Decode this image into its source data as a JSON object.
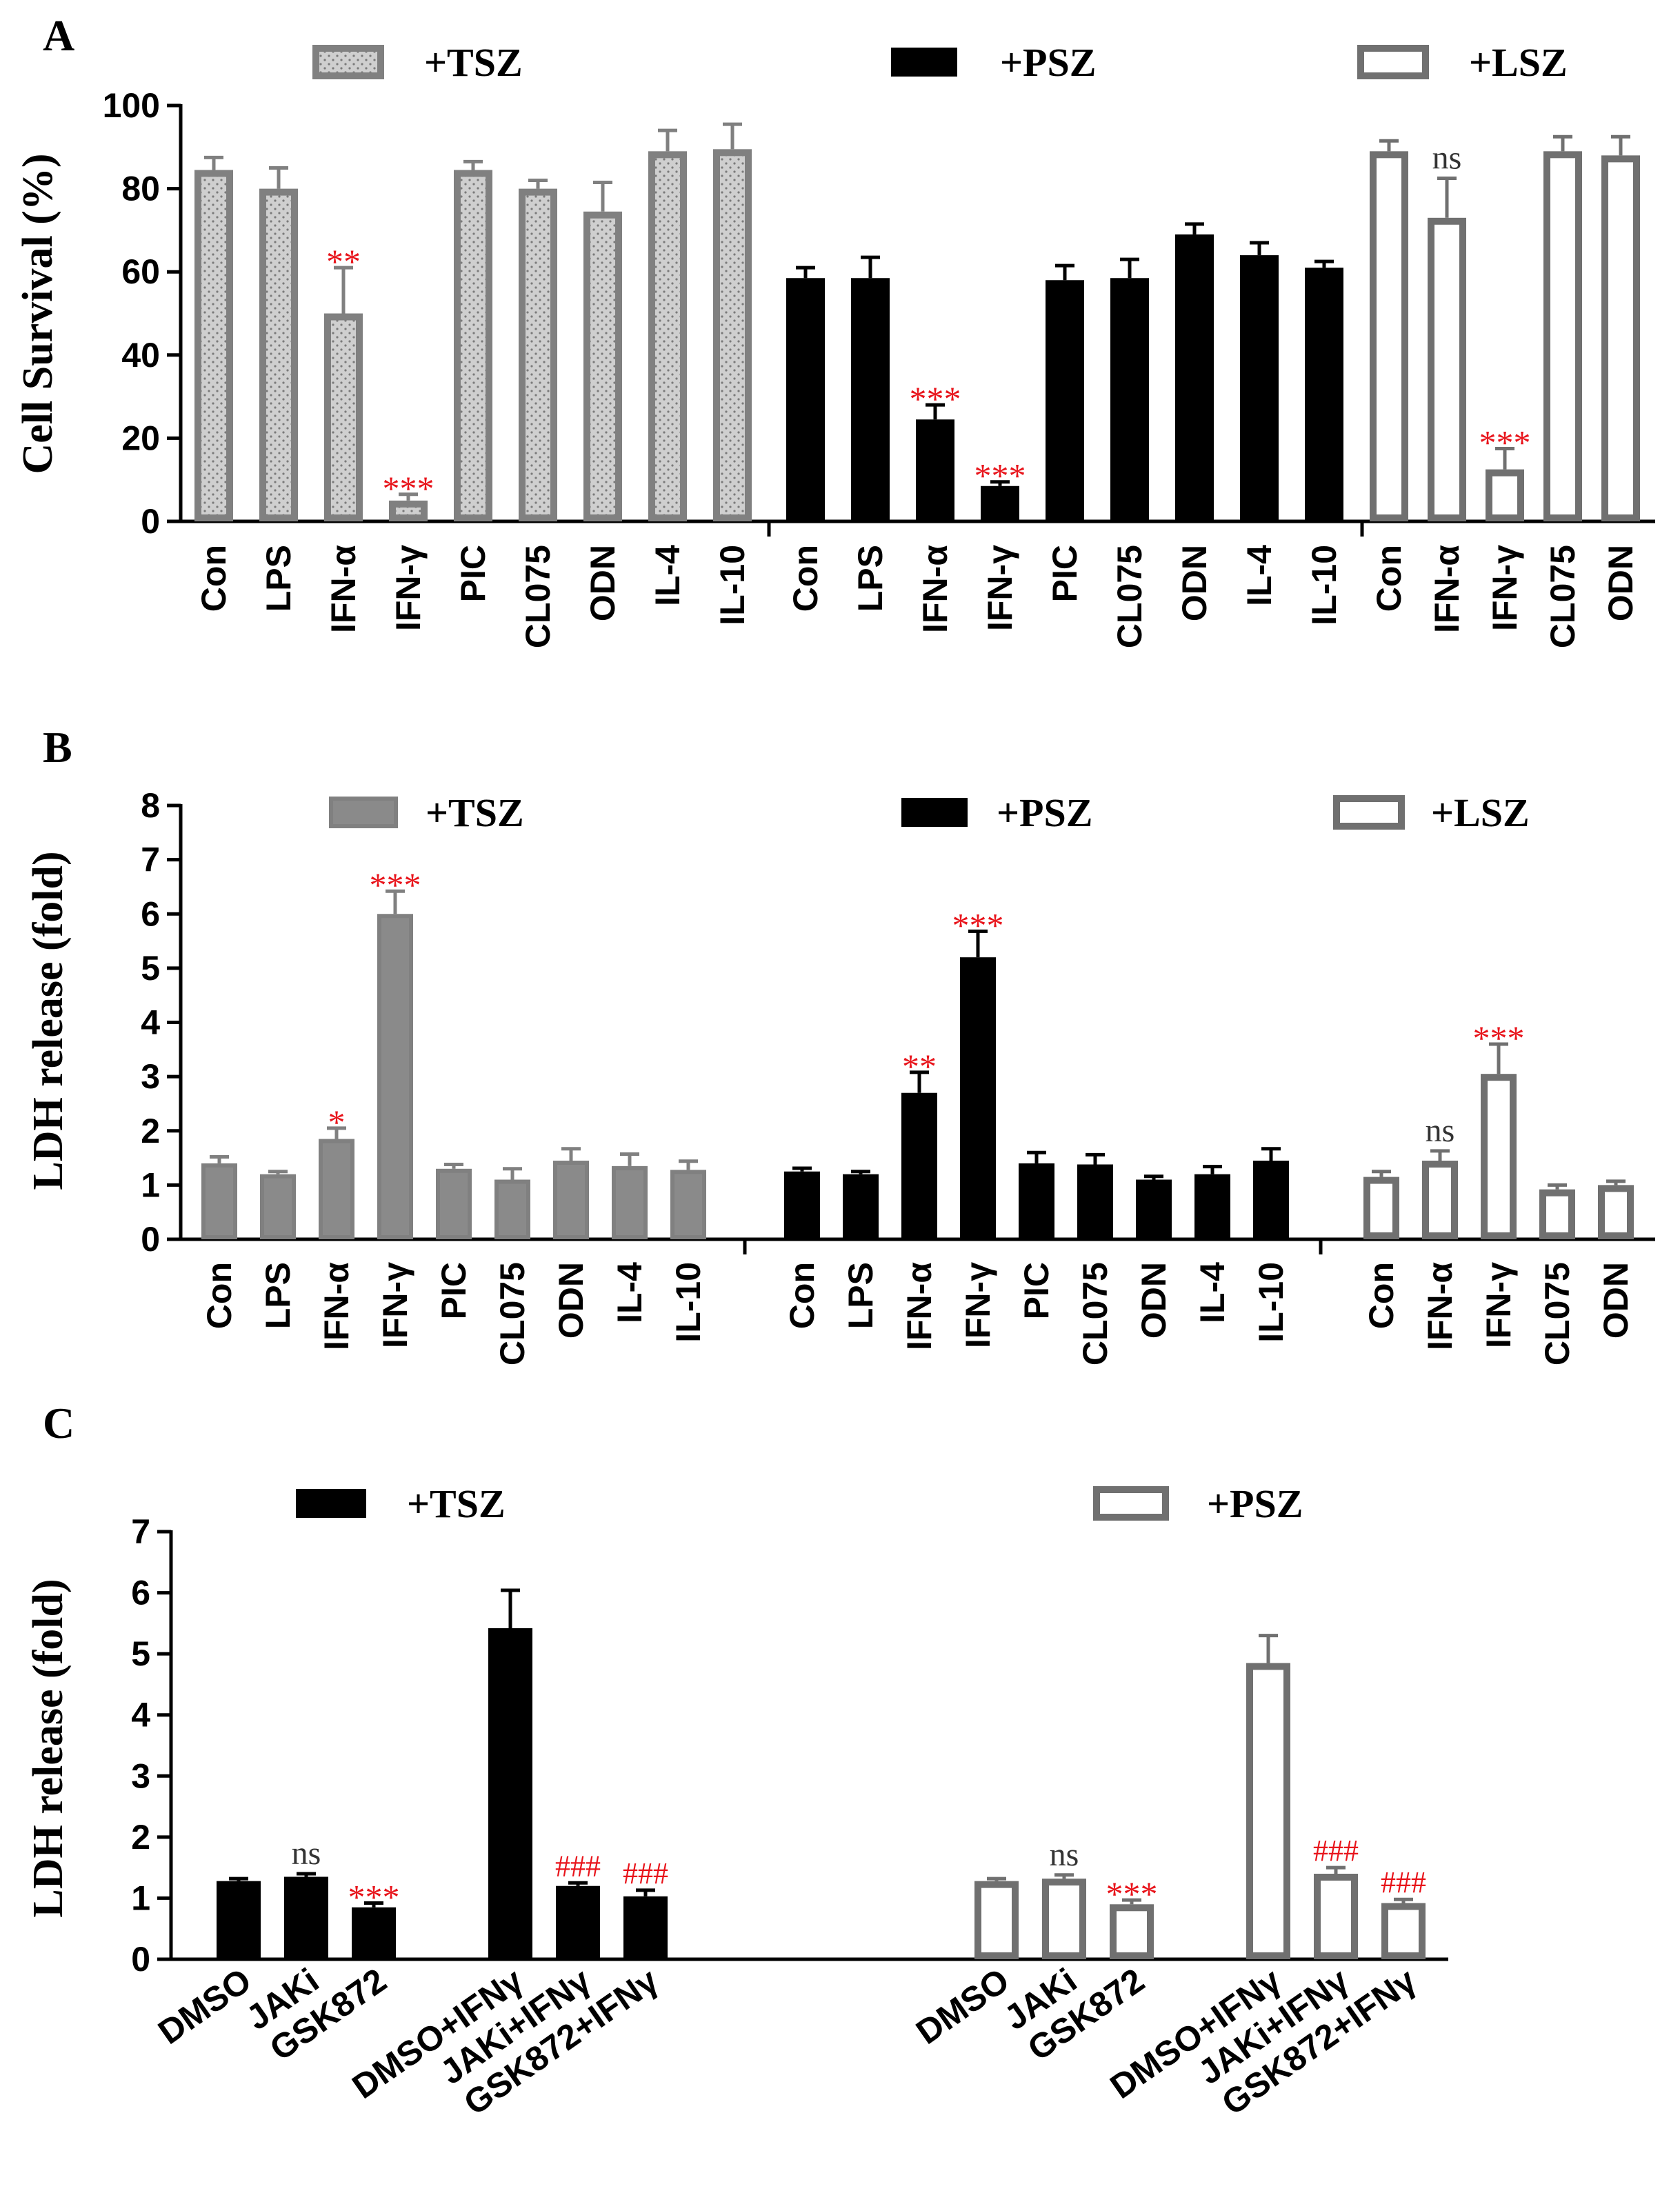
{
  "colors": {
    "TSZ_fill": "#cfcfcf",
    "TSZ_stroke": "#808080",
    "TSZ_solid_fill": "#8a8a8a",
    "PSZ_fill": "#000000",
    "LSZ_stroke": "#707070",
    "sig_red": "#e8141b",
    "ns_gray": "#333333"
  },
  "chart_data": [
    {
      "panel": "A",
      "type": "bar",
      "ylabel": "Cell Survival (%)",
      "ylim": [
        0,
        100
      ],
      "yticks": [
        0,
        20,
        40,
        60,
        80,
        100
      ],
      "legend": [
        "+TSZ",
        "+PSZ",
        "+LSZ"
      ],
      "groups": [
        {
          "name": "+TSZ",
          "style": "dotted-gray",
          "categories": [
            "Con",
            "LPS",
            "IFN-α",
            "IFN-γ",
            "PIC",
            "CL075",
            "ODN",
            "IL-4",
            "IL-10"
          ],
          "values": [
            84.5,
            80,
            50,
            5,
            84.5,
            80,
            74.5,
            89,
            89.5
          ],
          "errors": [
            3,
            5,
            11,
            1.5,
            2,
            2,
            7,
            5,
            6
          ],
          "annotations": [
            "",
            "",
            "**",
            "***",
            "",
            "",
            "",
            "",
            ""
          ]
        },
        {
          "name": "+PSZ",
          "style": "solid-black",
          "categories": [
            "Con",
            "LPS",
            "IFN-α",
            "IFN-γ",
            "PIC",
            "CL075",
            "ODN",
            "IL-4",
            "IL-10"
          ],
          "values": [
            58.5,
            58.5,
            24.5,
            8.5,
            58,
            58.5,
            69,
            64,
            61
          ],
          "errors": [
            2.5,
            5,
            3.5,
            1,
            3.5,
            4.5,
            2.5,
            3,
            1.5
          ],
          "annotations": [
            "",
            "",
            "***",
            "***",
            "",
            "",
            "",
            "",
            ""
          ]
        },
        {
          "name": "+LSZ",
          "style": "open-gray",
          "categories": [
            "Con",
            "IFN-α",
            "IFN-γ",
            "CL075",
            "ODN"
          ],
          "values": [
            89,
            73,
            12.5,
            89,
            88
          ],
          "errors": [
            2.5,
            9.5,
            5,
            3.5,
            4.5
          ],
          "annotations": [
            "",
            "ns",
            "***",
            "",
            ""
          ]
        }
      ]
    },
    {
      "panel": "B",
      "type": "bar",
      "ylabel": "LDH release (fold)",
      "ylim": [
        0,
        8
      ],
      "yticks": [
        0,
        1,
        2,
        3,
        4,
        5,
        6,
        7,
        8
      ],
      "legend": [
        "+TSZ",
        "+PSZ",
        "+LSZ"
      ],
      "groups": [
        {
          "name": "+TSZ",
          "style": "solid-gray",
          "categories": [
            "Con",
            "LPS",
            "IFN-α",
            "IFN-γ",
            "PIC",
            "CL075",
            "ODN",
            "IL-4",
            "IL-10"
          ],
          "values": [
            1.4,
            1.2,
            1.85,
            6,
            1.3,
            1.1,
            1.45,
            1.35,
            1.28
          ],
          "errors": [
            0.12,
            0.05,
            0.2,
            0.42,
            0.08,
            0.2,
            0.22,
            0.22,
            0.16
          ],
          "annotations": [
            "",
            "",
            "*",
            "***",
            "",
            "",
            "",
            "",
            ""
          ]
        },
        {
          "name": "+PSZ",
          "style": "solid-black",
          "categories": [
            "Con",
            "LPS",
            "IFN-α",
            "IFN-γ",
            "PIC",
            "CL075",
            "ODN",
            "IL-4",
            "IL-10"
          ],
          "values": [
            1.25,
            1.2,
            2.7,
            5.2,
            1.4,
            1.38,
            1.1,
            1.2,
            1.45
          ],
          "errors": [
            0.06,
            0.05,
            0.38,
            0.48,
            0.2,
            0.18,
            0.06,
            0.14,
            0.22
          ],
          "annotations": [
            "",
            "",
            "**",
            "***",
            "",
            "",
            "",
            "",
            ""
          ]
        },
        {
          "name": "+LSZ",
          "style": "open-gray",
          "categories": [
            "Con",
            "IFN-α",
            "IFN-γ",
            "CL075",
            "ODN"
          ],
          "values": [
            1.15,
            1.45,
            3.05,
            0.92,
            1.0
          ],
          "errors": [
            0.1,
            0.18,
            0.55,
            0.08,
            0.07
          ],
          "annotations": [
            "",
            "ns",
            "***",
            "",
            ""
          ]
        }
      ]
    },
    {
      "panel": "C",
      "type": "bar",
      "ylabel": "LDH release (fold)",
      "ylim": [
        0,
        7
      ],
      "yticks": [
        0,
        1,
        2,
        3,
        4,
        5,
        6,
        7
      ],
      "legend": [
        "+TSZ",
        "+PSZ"
      ],
      "groups": [
        {
          "name": "+TSZ",
          "style": "solid-black",
          "categories": [
            "DMSO",
            "JAKi",
            "GSK872",
            "DMSO+IFNγ",
            "JAKi+IFNγ",
            "GSK872+IFNγ"
          ],
          "values": [
            1.28,
            1.35,
            0.85,
            5.42,
            1.2,
            1.03
          ],
          "errors": [
            0.04,
            0.05,
            0.07,
            0.62,
            0.05,
            0.1
          ],
          "annotations": [
            "",
            "ns",
            "***",
            "",
            "###",
            "###"
          ]
        },
        {
          "name": "+PSZ",
          "style": "open-gray",
          "categories": [
            "DMSO",
            "JAKi",
            "GSK872",
            "DMSO+IFNγ",
            "JAKi+IFNγ",
            "GSK872+IFNγ"
          ],
          "values": [
            1.28,
            1.32,
            0.9,
            4.85,
            1.4,
            0.92
          ],
          "errors": [
            0.04,
            0.06,
            0.07,
            0.45,
            0.1,
            0.06
          ],
          "annotations": [
            "",
            "ns",
            "***",
            "",
            "###",
            "###"
          ]
        }
      ]
    }
  ]
}
